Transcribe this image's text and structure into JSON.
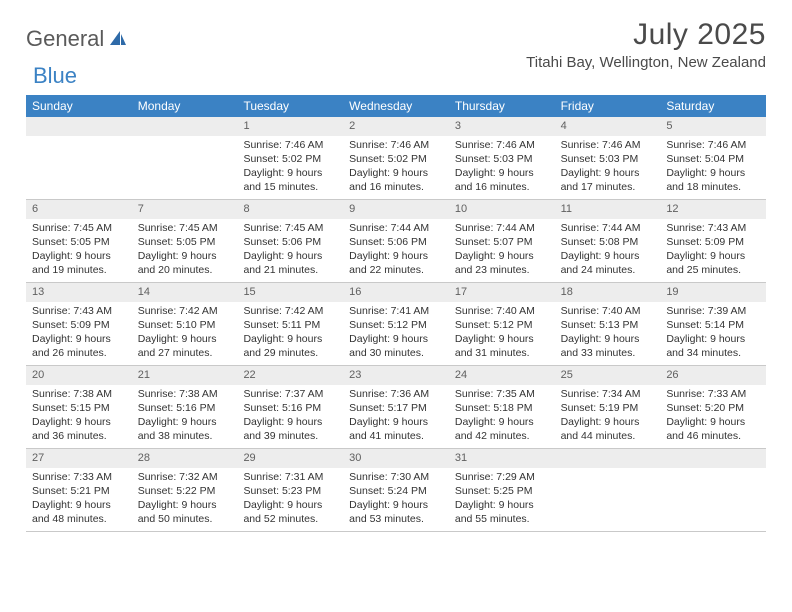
{
  "brand": {
    "part1": "General",
    "part2": "Blue"
  },
  "title": "July 2025",
  "location": "Titahi Bay, Wellington, New Zealand",
  "colors": {
    "header_bg": "#3b82c4",
    "header_text": "#ffffff",
    "daynum_bg": "#ededed",
    "daynum_text": "#606060",
    "body_text": "#333333",
    "rule": "#c9c9c9",
    "logo_gray": "#5a5a5a",
    "logo_blue": "#3b82c4"
  },
  "weekdays": [
    "Sunday",
    "Monday",
    "Tuesday",
    "Wednesday",
    "Thursday",
    "Friday",
    "Saturday"
  ],
  "weeks": [
    [
      null,
      null,
      {
        "n": "1",
        "sunrise": "Sunrise: 7:46 AM",
        "sunset": "Sunset: 5:02 PM",
        "day1": "Daylight: 9 hours",
        "day2": "and 15 minutes."
      },
      {
        "n": "2",
        "sunrise": "Sunrise: 7:46 AM",
        "sunset": "Sunset: 5:02 PM",
        "day1": "Daylight: 9 hours",
        "day2": "and 16 minutes."
      },
      {
        "n": "3",
        "sunrise": "Sunrise: 7:46 AM",
        "sunset": "Sunset: 5:03 PM",
        "day1": "Daylight: 9 hours",
        "day2": "and 16 minutes."
      },
      {
        "n": "4",
        "sunrise": "Sunrise: 7:46 AM",
        "sunset": "Sunset: 5:03 PM",
        "day1": "Daylight: 9 hours",
        "day2": "and 17 minutes."
      },
      {
        "n": "5",
        "sunrise": "Sunrise: 7:46 AM",
        "sunset": "Sunset: 5:04 PM",
        "day1": "Daylight: 9 hours",
        "day2": "and 18 minutes."
      }
    ],
    [
      {
        "n": "6",
        "sunrise": "Sunrise: 7:45 AM",
        "sunset": "Sunset: 5:05 PM",
        "day1": "Daylight: 9 hours",
        "day2": "and 19 minutes."
      },
      {
        "n": "7",
        "sunrise": "Sunrise: 7:45 AM",
        "sunset": "Sunset: 5:05 PM",
        "day1": "Daylight: 9 hours",
        "day2": "and 20 minutes."
      },
      {
        "n": "8",
        "sunrise": "Sunrise: 7:45 AM",
        "sunset": "Sunset: 5:06 PM",
        "day1": "Daylight: 9 hours",
        "day2": "and 21 minutes."
      },
      {
        "n": "9",
        "sunrise": "Sunrise: 7:44 AM",
        "sunset": "Sunset: 5:06 PM",
        "day1": "Daylight: 9 hours",
        "day2": "and 22 minutes."
      },
      {
        "n": "10",
        "sunrise": "Sunrise: 7:44 AM",
        "sunset": "Sunset: 5:07 PM",
        "day1": "Daylight: 9 hours",
        "day2": "and 23 minutes."
      },
      {
        "n": "11",
        "sunrise": "Sunrise: 7:44 AM",
        "sunset": "Sunset: 5:08 PM",
        "day1": "Daylight: 9 hours",
        "day2": "and 24 minutes."
      },
      {
        "n": "12",
        "sunrise": "Sunrise: 7:43 AM",
        "sunset": "Sunset: 5:09 PM",
        "day1": "Daylight: 9 hours",
        "day2": "and 25 minutes."
      }
    ],
    [
      {
        "n": "13",
        "sunrise": "Sunrise: 7:43 AM",
        "sunset": "Sunset: 5:09 PM",
        "day1": "Daylight: 9 hours",
        "day2": "and 26 minutes."
      },
      {
        "n": "14",
        "sunrise": "Sunrise: 7:42 AM",
        "sunset": "Sunset: 5:10 PM",
        "day1": "Daylight: 9 hours",
        "day2": "and 27 minutes."
      },
      {
        "n": "15",
        "sunrise": "Sunrise: 7:42 AM",
        "sunset": "Sunset: 5:11 PM",
        "day1": "Daylight: 9 hours",
        "day2": "and 29 minutes."
      },
      {
        "n": "16",
        "sunrise": "Sunrise: 7:41 AM",
        "sunset": "Sunset: 5:12 PM",
        "day1": "Daylight: 9 hours",
        "day2": "and 30 minutes."
      },
      {
        "n": "17",
        "sunrise": "Sunrise: 7:40 AM",
        "sunset": "Sunset: 5:12 PM",
        "day1": "Daylight: 9 hours",
        "day2": "and 31 minutes."
      },
      {
        "n": "18",
        "sunrise": "Sunrise: 7:40 AM",
        "sunset": "Sunset: 5:13 PM",
        "day1": "Daylight: 9 hours",
        "day2": "and 33 minutes."
      },
      {
        "n": "19",
        "sunrise": "Sunrise: 7:39 AM",
        "sunset": "Sunset: 5:14 PM",
        "day1": "Daylight: 9 hours",
        "day2": "and 34 minutes."
      }
    ],
    [
      {
        "n": "20",
        "sunrise": "Sunrise: 7:38 AM",
        "sunset": "Sunset: 5:15 PM",
        "day1": "Daylight: 9 hours",
        "day2": "and 36 minutes."
      },
      {
        "n": "21",
        "sunrise": "Sunrise: 7:38 AM",
        "sunset": "Sunset: 5:16 PM",
        "day1": "Daylight: 9 hours",
        "day2": "and 38 minutes."
      },
      {
        "n": "22",
        "sunrise": "Sunrise: 7:37 AM",
        "sunset": "Sunset: 5:16 PM",
        "day1": "Daylight: 9 hours",
        "day2": "and 39 minutes."
      },
      {
        "n": "23",
        "sunrise": "Sunrise: 7:36 AM",
        "sunset": "Sunset: 5:17 PM",
        "day1": "Daylight: 9 hours",
        "day2": "and 41 minutes."
      },
      {
        "n": "24",
        "sunrise": "Sunrise: 7:35 AM",
        "sunset": "Sunset: 5:18 PM",
        "day1": "Daylight: 9 hours",
        "day2": "and 42 minutes."
      },
      {
        "n": "25",
        "sunrise": "Sunrise: 7:34 AM",
        "sunset": "Sunset: 5:19 PM",
        "day1": "Daylight: 9 hours",
        "day2": "and 44 minutes."
      },
      {
        "n": "26",
        "sunrise": "Sunrise: 7:33 AM",
        "sunset": "Sunset: 5:20 PM",
        "day1": "Daylight: 9 hours",
        "day2": "and 46 minutes."
      }
    ],
    [
      {
        "n": "27",
        "sunrise": "Sunrise: 7:33 AM",
        "sunset": "Sunset: 5:21 PM",
        "day1": "Daylight: 9 hours",
        "day2": "and 48 minutes."
      },
      {
        "n": "28",
        "sunrise": "Sunrise: 7:32 AM",
        "sunset": "Sunset: 5:22 PM",
        "day1": "Daylight: 9 hours",
        "day2": "and 50 minutes."
      },
      {
        "n": "29",
        "sunrise": "Sunrise: 7:31 AM",
        "sunset": "Sunset: 5:23 PM",
        "day1": "Daylight: 9 hours",
        "day2": "and 52 minutes."
      },
      {
        "n": "30",
        "sunrise": "Sunrise: 7:30 AM",
        "sunset": "Sunset: 5:24 PM",
        "day1": "Daylight: 9 hours",
        "day2": "and 53 minutes."
      },
      {
        "n": "31",
        "sunrise": "Sunrise: 7:29 AM",
        "sunset": "Sunset: 5:25 PM",
        "day1": "Daylight: 9 hours",
        "day2": "and 55 minutes."
      },
      null,
      null
    ]
  ]
}
